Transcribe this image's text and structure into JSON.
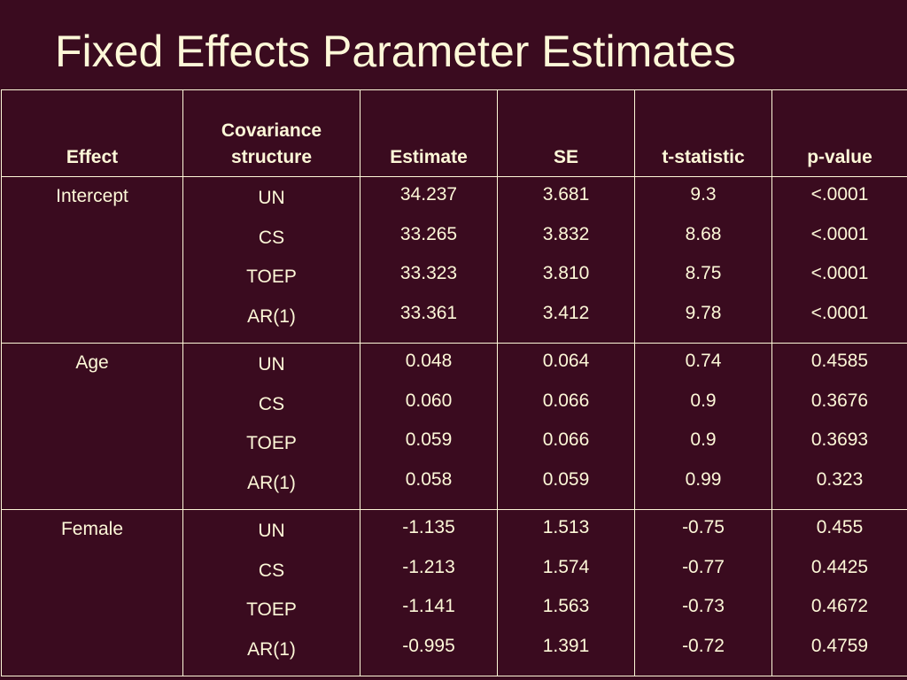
{
  "title": "Fixed Effects Parameter Estimates",
  "columns": {
    "effect": "Effect",
    "cov_line1": "Covariance",
    "cov_line2": "structure",
    "estimate": "Estimate",
    "se": "SE",
    "tstat": "t-statistic",
    "pvalue": "p-value"
  },
  "groups": [
    {
      "effect": "Intercept",
      "structures": [
        "UN",
        "CS",
        "TOEP",
        "AR(1)"
      ],
      "estimate": [
        "34.237",
        "33.265",
        "33.323",
        "33.361"
      ],
      "se": [
        "3.681",
        "3.832",
        "3.810",
        "3.412"
      ],
      "tstat": [
        "9.3",
        "8.68",
        "8.75",
        "9.78"
      ],
      "pvalue": [
        "<.0001",
        "<.0001",
        "<.0001",
        "<.0001"
      ]
    },
    {
      "effect": "Age",
      "structures": [
        "UN",
        "CS",
        "TOEP",
        "AR(1)"
      ],
      "estimate": [
        "0.048",
        "0.060",
        "0.059",
        "0.058"
      ],
      "se": [
        "0.064",
        "0.066",
        "0.066",
        "0.059"
      ],
      "tstat": [
        "0.74",
        "0.9",
        "0.9",
        "0.99"
      ],
      "pvalue": [
        "0.4585",
        "0.3676",
        "0.3693",
        "0.323"
      ]
    },
    {
      "effect": "Female",
      "structures": [
        "UN",
        "CS",
        "TOEP",
        "AR(1)"
      ],
      "estimate": [
        "-1.135",
        "-1.213",
        "-1.141",
        "-0.995"
      ],
      "se": [
        "1.513",
        "1.574",
        "1.563",
        "1.391"
      ],
      "tstat": [
        "-0.75",
        "-0.77",
        "-0.73",
        "-0.72"
      ],
      "pvalue": [
        "0.455",
        "0.4425",
        "0.4672",
        "0.4759"
      ]
    }
  ]
}
